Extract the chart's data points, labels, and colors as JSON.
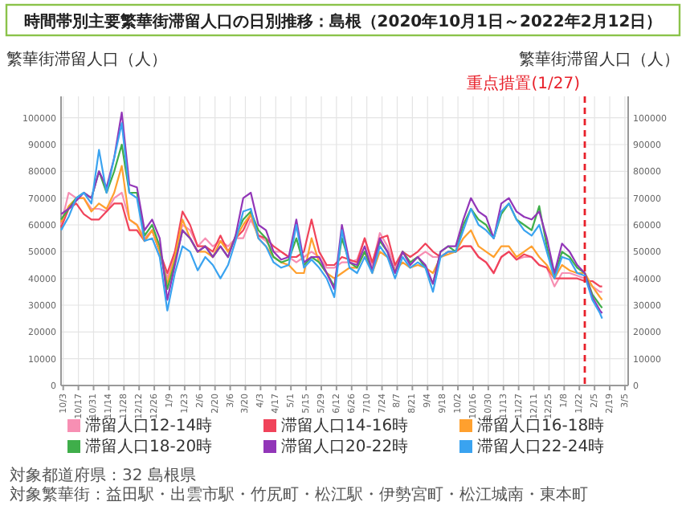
{
  "chart_data": {
    "type": "line",
    "title": "時間帯別主要繁華街滞留人口の日別推移：島根（2020年10月1日～2022年2月12日）",
    "ylabel": "繁華街滞留人口（人）",
    "y2label": "繁華街滞留人口（人）",
    "x": [
      "2020-10-01",
      "2020-10-08",
      "2020-10-15",
      "2020-10-22",
      "2020-10-29",
      "2020-11-05",
      "2020-11-12",
      "2020-11-19",
      "2020-11-26",
      "2020-12-03",
      "2020-12-10",
      "2020-12-17",
      "2020-12-24",
      "2020-12-31",
      "2021-01-07",
      "2021-01-14",
      "2021-01-21",
      "2021-01-28",
      "2021-02-04",
      "2021-02-11",
      "2021-02-18",
      "2021-02-25",
      "2021-03-04",
      "2021-03-11",
      "2021-03-18",
      "2021-03-25",
      "2021-04-01",
      "2021-04-08",
      "2021-04-15",
      "2021-04-22",
      "2021-04-29",
      "2021-05-06",
      "2021-05-13",
      "2021-05-20",
      "2021-05-27",
      "2021-06-03",
      "2021-06-10",
      "2021-06-17",
      "2021-06-24",
      "2021-07-01",
      "2021-07-08",
      "2021-07-15",
      "2021-07-22",
      "2021-07-29",
      "2021-08-05",
      "2021-08-12",
      "2021-08-19",
      "2021-08-26",
      "2021-09-02",
      "2021-09-09",
      "2021-09-16",
      "2021-09-23",
      "2021-09-30",
      "2021-10-07",
      "2021-10-14",
      "2021-10-21",
      "2021-10-28",
      "2021-11-04",
      "2021-11-11",
      "2021-11-18",
      "2021-11-25",
      "2021-12-02",
      "2021-12-09",
      "2021-12-16",
      "2021-12-23",
      "2021-12-30",
      "2022-01-06",
      "2022-01-13",
      "2022-01-20",
      "2022-01-27",
      "2022-02-03",
      "2022-02-10",
      "2022-02-12"
    ],
    "xlim": [
      "2020-10-01",
      "2022-03-08"
    ],
    "xticks": [
      {
        "value": "2020-10-03",
        "label": "10/3"
      },
      {
        "value": "2020-10-17",
        "label": "10/17"
      },
      {
        "value": "2020-10-31",
        "label": "10/31"
      },
      {
        "value": "2020-11-14",
        "label": "11/14"
      },
      {
        "value": "2020-11-28",
        "label": "11/28"
      },
      {
        "value": "2020-12-12",
        "label": "12/12"
      },
      {
        "value": "2020-12-26",
        "label": "12/26"
      },
      {
        "value": "2021-01-09",
        "label": "1/9"
      },
      {
        "value": "2021-01-23",
        "label": "1/23"
      },
      {
        "value": "2021-02-06",
        "label": "2/6"
      },
      {
        "value": "2021-02-20",
        "label": "2/20"
      },
      {
        "value": "2021-03-06",
        "label": "3/6"
      },
      {
        "value": "2021-03-20",
        "label": "3/20"
      },
      {
        "value": "2021-04-03",
        "label": "4/3"
      },
      {
        "value": "2021-04-17",
        "label": "4/17"
      },
      {
        "value": "2021-05-01",
        "label": "5/1"
      },
      {
        "value": "2021-05-15",
        "label": "5/15"
      },
      {
        "value": "2021-05-29",
        "label": "5/29"
      },
      {
        "value": "2021-06-12",
        "label": "6/12"
      },
      {
        "value": "2021-06-26",
        "label": "6/26"
      },
      {
        "value": "2021-07-10",
        "label": "7/10"
      },
      {
        "value": "2021-07-24",
        "label": "7/24"
      },
      {
        "value": "2021-08-07",
        "label": "8/7"
      },
      {
        "value": "2021-08-21",
        "label": "8/21"
      },
      {
        "value": "2021-09-04",
        "label": "9/4"
      },
      {
        "value": "2021-09-18",
        "label": "9/18"
      },
      {
        "value": "2021-10-02",
        "label": "10/2"
      },
      {
        "value": "2021-10-16",
        "label": "10/16"
      },
      {
        "value": "2021-10-30",
        "label": "10/30"
      },
      {
        "value": "2021-11-13",
        "label": "11/13"
      },
      {
        "value": "2021-11-27",
        "label": "11/27"
      },
      {
        "value": "2021-12-11",
        "label": "12/11"
      },
      {
        "value": "2021-12-25",
        "label": "12/25"
      },
      {
        "value": "2022-01-08",
        "label": "1/8"
      },
      {
        "value": "2022-01-22",
        "label": "1/22"
      },
      {
        "value": "2022-02-05",
        "label": "2/5"
      },
      {
        "value": "2022-02-19",
        "label": "2/19"
      },
      {
        "value": "2022-03-05",
        "label": "3/5"
      }
    ],
    "ylim": [
      0,
      108000
    ],
    "yticks": [
      0,
      10000,
      20000,
      30000,
      40000,
      50000,
      60000,
      70000,
      80000,
      90000,
      100000
    ],
    "y2lim": [
      0,
      108000
    ],
    "y2ticks": [
      0,
      10000,
      20000,
      30000,
      40000,
      50000,
      60000,
      70000,
      80000,
      90000,
      100000
    ],
    "grid": true,
    "legend": "bottom",
    "ref_lines": [
      {
        "axis": "x",
        "value": "2022-01-27",
        "label": "重点措置(1/27)",
        "color": "#e8202a",
        "line_style": "dashed"
      }
    ],
    "annotations": [
      "対象都道府県：32 島根県",
      "対象繁華街：益田駅・出雲市駅・竹尻町・松江駅・伊勢宮町・松江城南・東本町"
    ],
    "series": [
      {
        "name": "滞留人口12-14時",
        "color": "#f78fb3",
        "values": [
          60000,
          72000,
          70000,
          70000,
          66000,
          66000,
          65000,
          70000,
          72000,
          62000,
          60000,
          55000,
          58000,
          50000,
          40000,
          50000,
          60000,
          58000,
          52000,
          55000,
          52000,
          54000,
          52000,
          55000,
          55000,
          62000,
          56000,
          54000,
          50000,
          50000,
          48000,
          46000,
          48000,
          50000,
          48000,
          44000,
          44000,
          46000,
          46000,
          47000,
          55000,
          45000,
          57000,
          52000,
          44000,
          50000,
          46000,
          48000,
          50000,
          48000,
          48000,
          50000,
          50000,
          52000,
          52000,
          48000,
          46000,
          42000,
          48000,
          50000,
          47000,
          48000,
          48000,
          45000,
          44000,
          37000,
          42000,
          42000,
          41000,
          40000,
          37000,
          35000,
          35000
        ]
      },
      {
        "name": "滞留人口14-16時",
        "color": "#f0435a",
        "values": [
          59000,
          66000,
          68000,
          64000,
          62000,
          62000,
          65000,
          68000,
          68000,
          58000,
          58000,
          54000,
          58000,
          50000,
          42000,
          50000,
          65000,
          60000,
          52000,
          52000,
          50000,
          56000,
          50000,
          55000,
          58000,
          64000,
          56000,
          55000,
          52000,
          50000,
          48000,
          48000,
          50000,
          62000,
          50000,
          45000,
          45000,
          48000,
          47000,
          46000,
          55000,
          46000,
          55000,
          56000,
          45000,
          50000,
          48000,
          50000,
          53000,
          50000,
          48000,
          50000,
          50000,
          52000,
          52000,
          48000,
          46000,
          42000,
          48000,
          50000,
          47000,
          49000,
          48000,
          45000,
          44000,
          40000,
          40000,
          40000,
          40000,
          39000,
          39000,
          37000,
          37000
        ]
      },
      {
        "name": "滞留人口16-18時",
        "color": "#ffa02e",
        "values": [
          61000,
          67000,
          70000,
          70000,
          65000,
          68000,
          66000,
          72000,
          82000,
          62000,
          60000,
          54000,
          58000,
          50000,
          38000,
          48000,
          62000,
          55000,
          50000,
          50000,
          48000,
          54000,
          50000,
          55000,
          60000,
          64000,
          55000,
          52000,
          48000,
          46000,
          45000,
          42000,
          42000,
          55000,
          46000,
          42000,
          40000,
          42000,
          44000,
          44000,
          50000,
          42000,
          50000,
          48000,
          43000,
          46000,
          44000,
          45000,
          44000,
          42000,
          48000,
          49000,
          50000,
          55000,
          58000,
          52000,
          50000,
          48000,
          52000,
          52000,
          48000,
          50000,
          52000,
          48000,
          45000,
          40000,
          45000,
          43000,
          42000,
          42000,
          37000,
          33000,
          32000
        ]
      },
      {
        "name": "滞留人口18-20時",
        "color": "#3fae4a",
        "values": [
          62000,
          66000,
          70000,
          72000,
          70000,
          80000,
          72000,
          80000,
          90000,
          72000,
          72000,
          56000,
          60000,
          52000,
          36000,
          46000,
          58000,
          55000,
          50000,
          52000,
          48000,
          52000,
          48000,
          56000,
          62000,
          65000,
          58000,
          55000,
          48000,
          46000,
          47000,
          55000,
          45000,
          48000,
          46000,
          42000,
          37000,
          55000,
          46000,
          44000,
          50000,
          43000,
          54000,
          50000,
          42000,
          50000,
          46000,
          48000,
          44000,
          38000,
          50000,
          52000,
          50000,
          60000,
          66000,
          62000,
          60000,
          55000,
          64000,
          68000,
          62000,
          60000,
          58000,
          67000,
          52000,
          41000,
          50000,
          48000,
          44000,
          42000,
          34000,
          30000,
          29000
        ]
      },
      {
        "name": "滞留人口20-22時",
        "color": "#9236b8",
        "values": [
          64000,
          66000,
          69000,
          72000,
          70000,
          80000,
          74000,
          85000,
          102000,
          75000,
          74000,
          58000,
          62000,
          55000,
          32000,
          45000,
          58000,
          55000,
          50000,
          52000,
          48000,
          52000,
          48000,
          56000,
          70000,
          72000,
          60000,
          58000,
          50000,
          47000,
          48000,
          62000,
          46000,
          48000,
          48000,
          42000,
          36000,
          60000,
          46000,
          45000,
          52000,
          43000,
          55000,
          50000,
          42000,
          50000,
          45000,
          48000,
          45000,
          38000,
          50000,
          52000,
          52000,
          62000,
          70000,
          65000,
          63000,
          55000,
          68000,
          70000,
          65000,
          63000,
          62000,
          65000,
          55000,
          42000,
          53000,
          50000,
          45000,
          42000,
          33000,
          28000,
          27000
        ]
      },
      {
        "name": "滞留人口22-24時",
        "color": "#3aa3f0",
        "values": [
          58000,
          63000,
          70000,
          72000,
          68000,
          88000,
          72000,
          85000,
          98000,
          72000,
          70000,
          54000,
          55000,
          48000,
          28000,
          42000,
          52000,
          50000,
          43000,
          48000,
          45000,
          40000,
          45000,
          54000,
          65000,
          66000,
          55000,
          52000,
          46000,
          44000,
          45000,
          60000,
          44000,
          47000,
          44000,
          40000,
          33000,
          58000,
          44000,
          42000,
          48000,
          42000,
          52000,
          48000,
          40000,
          48000,
          44000,
          46000,
          44000,
          35000,
          48000,
          50000,
          50000,
          58000,
          66000,
          60000,
          58000,
          55000,
          65000,
          68000,
          62000,
          58000,
          56000,
          60000,
          50000,
          40000,
          48000,
          47000,
          42000,
          41000,
          32000,
          27000,
          25000
        ]
      }
    ]
  }
}
